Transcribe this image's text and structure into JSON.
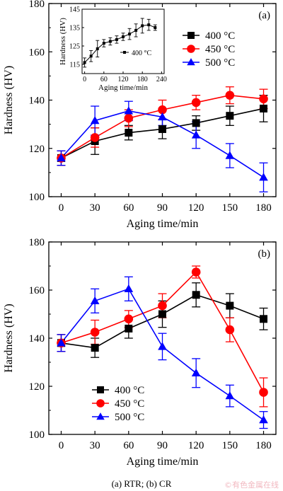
{
  "caption": "(a) RTR; (b) CR",
  "watermark": "©有色金属在线",
  "chart_data": [
    {
      "panel": "(a)",
      "type": "line",
      "xlabel": "Aging time/min",
      "ylabel": "Hardness (HV)",
      "x": [
        0,
        30,
        60,
        90,
        120,
        150,
        180
      ],
      "xlim": [
        -11,
        191
      ],
      "ylim": [
        100,
        180
      ],
      "xticks": [
        "0",
        "30",
        "60",
        "90",
        "120",
        "150",
        "180"
      ],
      "yticks": [
        "100",
        "120",
        "140",
        "160",
        "180"
      ],
      "legend_position": "right",
      "series": [
        {
          "name": "400 °C",
          "color": "#000000",
          "marker": "square",
          "values": [
            116,
            123,
            126.5,
            128,
            130.5,
            133.5,
            136.5
          ],
          "errors": [
            3,
            5.5,
            3,
            4,
            3,
            4,
            5.5
          ]
        },
        {
          "name": "450 °C",
          "color": "#ff0000",
          "marker": "circle",
          "values": [
            116,
            124.5,
            132.5,
            136,
            139,
            142,
            140.5
          ],
          "errors": [
            3,
            4,
            3.5,
            4,
            3,
            3.5,
            4
          ]
        },
        {
          "name": "500 °C",
          "color": "#0000ff",
          "marker": "triangle",
          "values": [
            116,
            131.5,
            135.5,
            133,
            125.5,
            117,
            108
          ],
          "errors": [
            3,
            6,
            4,
            3.5,
            5.5,
            5,
            6
          ]
        }
      ],
      "inset": {
        "type": "line",
        "xlabel": "Aging time/min",
        "ylabel": "Hardness (HV)",
        "xlim": [
          -8,
          248
        ],
        "ylim": [
          110,
          145
        ],
        "xticks": [
          "0",
          "60",
          "120",
          "180",
          "240"
        ],
        "yticks": [
          "115",
          "125",
          "135",
          "145"
        ],
        "series": [
          {
            "name": "400 °C",
            "color": "#000000",
            "marker": "square",
            "x": [
              0,
              20,
              40,
              60,
              80,
              100,
              120,
              140,
              160,
              180,
              200,
              220
            ],
            "values": [
              116,
              119.5,
              123.5,
              126.5,
              127.5,
              128.5,
              130,
              131.5,
              133.5,
              136,
              136.5,
              135
            ],
            "errors": [
              2.5,
              3,
              4.5,
              2,
              2,
              2,
              2,
              3,
              3.5,
              4,
              3,
              1.5
            ]
          }
        ]
      }
    },
    {
      "panel": "(b)",
      "type": "line",
      "xlabel": "Aging time/min",
      "ylabel": "Hardness (HV)",
      "x": [
        0,
        30,
        60,
        90,
        120,
        150,
        180
      ],
      "xlim": [
        -11,
        191
      ],
      "ylim": [
        100,
        180
      ],
      "xticks": [
        "0",
        "30",
        "60",
        "90",
        "120",
        "150",
        "180"
      ],
      "yticks": [
        "100",
        "120",
        "140",
        "160",
        "180"
      ],
      "legend_position": "bottom-left",
      "series": [
        {
          "name": "400 °C",
          "color": "#000000",
          "marker": "square",
          "values": [
            138,
            136,
            144,
            150,
            158,
            153.5,
            148
          ],
          "errors": [
            3.5,
            4,
            4,
            5.5,
            5,
            5,
            4.5
          ]
        },
        {
          "name": "450 °C",
          "color": "#ff0000",
          "marker": "circle",
          "values": [
            138,
            142.5,
            148,
            153.5,
            167.5,
            143.5,
            117.5
          ],
          "errors": [
            3.5,
            5,
            3.5,
            5,
            2.5,
            5,
            6
          ]
        },
        {
          "name": "500 °C",
          "color": "#0000ff",
          "marker": "triangle",
          "values": [
            138,
            155.5,
            160.5,
            136.5,
            125.5,
            116,
            106
          ],
          "errors": [
            3.5,
            5,
            5,
            5.5,
            6,
            4.5,
            3.5
          ]
        }
      ]
    }
  ]
}
